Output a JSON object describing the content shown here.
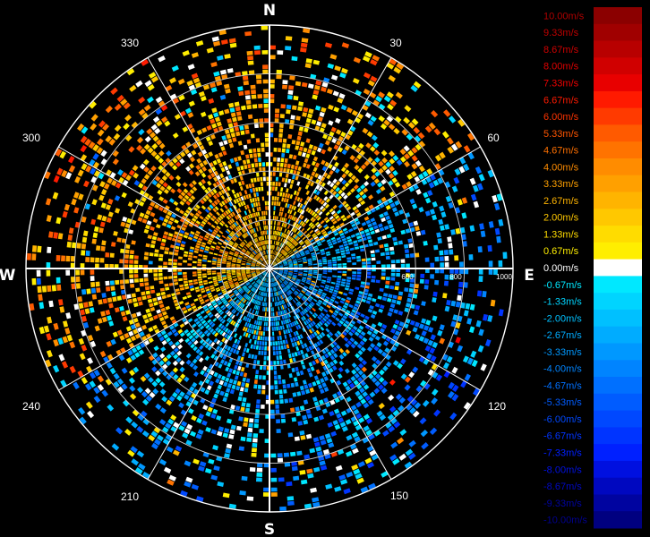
{
  "chart_data": {
    "type": "heatmap",
    "subtype": "polar-radial-velocity",
    "directions": {
      "north": "N",
      "east": "E",
      "south": "S",
      "west": "W"
    },
    "angle_ticks": [
      "30",
      "60",
      "120",
      "150",
      "210",
      "240",
      "300",
      "330"
    ],
    "range_labels": [
      "600",
      "800",
      "1000"
    ],
    "range_rings": 5,
    "grid": true,
    "legend": {
      "placement": "right",
      "entries": [
        {
          "label": "10.00m/s",
          "color": "#8b0000",
          "text_color": "#b00000"
        },
        {
          "label": "9.33m/s",
          "color": "#a00000",
          "text_color": "#c00000"
        },
        {
          "label": "8.67m/s",
          "color": "#b80000",
          "text_color": "#d00000"
        },
        {
          "label": "8.00m/s",
          "color": "#d00000",
          "text_color": "#e00000"
        },
        {
          "label": "7.33m/s",
          "color": "#e80000",
          "text_color": "#f00000"
        },
        {
          "label": "6.67m/s",
          "color": "#ff1a00",
          "text_color": "#ff1a00"
        },
        {
          "label": "6.00m/s",
          "color": "#ff3a00",
          "text_color": "#ff3300"
        },
        {
          "label": "5.33m/s",
          "color": "#ff5a00",
          "text_color": "#ff5500"
        },
        {
          "label": "4.67m/s",
          "color": "#ff7300",
          "text_color": "#ff7000"
        },
        {
          "label": "4.00m/s",
          "color": "#ff8c00",
          "text_color": "#ff8c00"
        },
        {
          "label": "3.33m/s",
          "color": "#ffa000",
          "text_color": "#ffa000"
        },
        {
          "label": "2.67m/s",
          "color": "#ffb400",
          "text_color": "#ffb400"
        },
        {
          "label": "2.00m/s",
          "color": "#ffc800",
          "text_color": "#ffc800"
        },
        {
          "label": "1.33m/s",
          "color": "#ffdc00",
          "text_color": "#ffdc00"
        },
        {
          "label": "0.67m/s",
          "color": "#ffee00",
          "text_color": "#ffee00"
        },
        {
          "label": "0.00m/s",
          "color": "#ffffff",
          "text_color": "#ffffff"
        },
        {
          "label": "-0.67m/s",
          "color": "#00e8ff",
          "text_color": "#00e8ff"
        },
        {
          "label": "-1.33m/s",
          "color": "#00d4ff",
          "text_color": "#00d4ff"
        },
        {
          "label": "-2.00m/s",
          "color": "#00c0ff",
          "text_color": "#00c0ff"
        },
        {
          "label": "-2.67m/s",
          "color": "#00acff",
          "text_color": "#00acff"
        },
        {
          "label": "-3.33m/s",
          "color": "#0098ff",
          "text_color": "#0098ff"
        },
        {
          "label": "-4.00m/s",
          "color": "#0084ff",
          "text_color": "#0084ff"
        },
        {
          "label": "-4.67m/s",
          "color": "#0070ff",
          "text_color": "#0070ff"
        },
        {
          "label": "-5.33m/s",
          "color": "#005cff",
          "text_color": "#005cff"
        },
        {
          "label": "-6.00m/s",
          "color": "#0048ff",
          "text_color": "#0048ff"
        },
        {
          "label": "-6.67m/s",
          "color": "#0034ff",
          "text_color": "#0034ff"
        },
        {
          "label": "-7.33m/s",
          "color": "#0020ff",
          "text_color": "#0020ff"
        },
        {
          "label": "-8.00m/s",
          "color": "#0010e0",
          "text_color": "#0010e0"
        },
        {
          "label": "-8.67m/s",
          "color": "#0008c0",
          "text_color": "#0008c0"
        },
        {
          "label": "-9.33m/s",
          "color": "#0004a0",
          "text_color": "#0004a0"
        },
        {
          "label": "-10.00m/s",
          "color": "#000080",
          "text_color": "#000090"
        }
      ]
    },
    "value_range": [
      -10.0,
      10.0
    ],
    "pattern": "positive velocities (warm colors) dominate northwest-to-north and southwest sectors; negative velocities (cool colors) dominate east and southeast sectors; zero line along west-east axis",
    "sectors": [
      {
        "azimuth": [
          0,
          30
        ],
        "mean_velocity": 2.5
      },
      {
        "azimuth": [
          30,
          60
        ],
        "mean_velocity": 2.0
      },
      {
        "azimuth": [
          60,
          90
        ],
        "mean_velocity": -2.5
      },
      {
        "azimuth": [
          90,
          120
        ],
        "mean_velocity": -3.5
      },
      {
        "azimuth": [
          120,
          150
        ],
        "mean_velocity": -3.5
      },
      {
        "azimuth": [
          150,
          180
        ],
        "mean_velocity": -3.0
      },
      {
        "azimuth": [
          180,
          210
        ],
        "mean_velocity": -2.5
      },
      {
        "azimuth": [
          210,
          240
        ],
        "mean_velocity": -2.0
      },
      {
        "azimuth": [
          240,
          270
        ],
        "mean_velocity": 2.5
      },
      {
        "azimuth": [
          270,
          300
        ],
        "mean_velocity": 3.0
      },
      {
        "azimuth": [
          300,
          330
        ],
        "mean_velocity": 3.0
      },
      {
        "azimuth": [
          330,
          360
        ],
        "mean_velocity": 2.5
      }
    ]
  }
}
